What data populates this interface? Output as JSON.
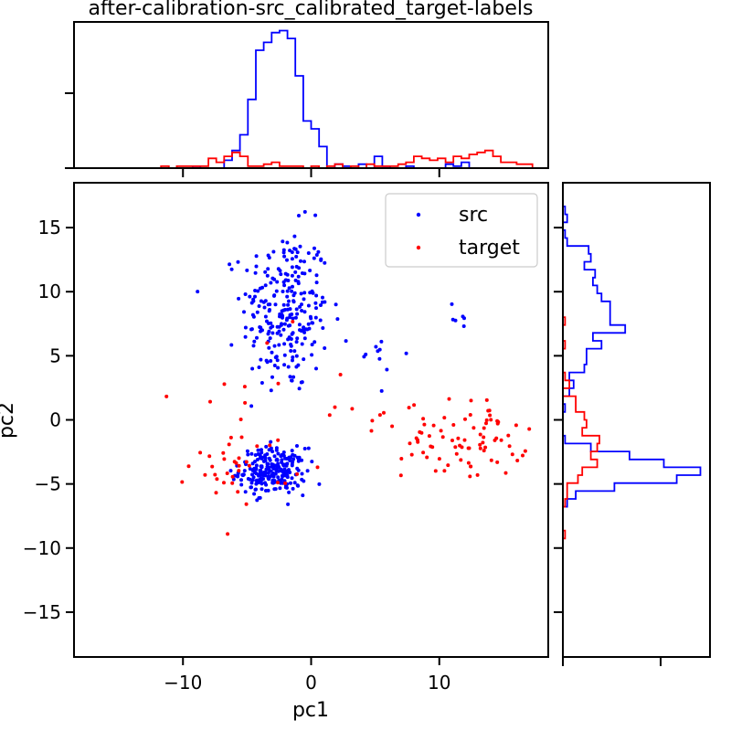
{
  "chart_data": {
    "type": "scatter",
    "title": "after-calibration-src_calibrated_target-labels",
    "xlabel": "pc1",
    "ylabel": "pc2",
    "xlim": [
      -18.5,
      18.5
    ],
    "ylim": [
      -18.5,
      18.5
    ],
    "xticks": [
      -10,
      0,
      10
    ],
    "yticks": [
      -15,
      -10,
      -5,
      0,
      5,
      10,
      15
    ],
    "xtick_labels": [
      "−10",
      "0",
      "10"
    ],
    "ytick_labels": [
      "−15",
      "−10",
      "−5",
      "0",
      "5",
      "10",
      "15"
    ],
    "legend_position": "top-right",
    "series": [
      {
        "name": "src",
        "color": "#0000ff",
        "clusters": [
          {
            "cx": -2.0,
            "cy": 8.5,
            "sx": 1.7,
            "sy": 3.2,
            "n": 260
          },
          {
            "cx": -3.0,
            "cy": -4.0,
            "sx": 1.3,
            "sy": 0.9,
            "n": 240
          },
          {
            "cx": 11.0,
            "cy": 8.0,
            "sx": 1.0,
            "sy": 0.8,
            "n": 6
          },
          {
            "cx": 5.5,
            "cy": 5.0,
            "sx": 1.0,
            "sy": 1.0,
            "n": 10
          }
        ]
      },
      {
        "name": "target",
        "color": "#ff0000",
        "clusters": [
          {
            "cx": 12.0,
            "cy": -1.5,
            "sx": 2.4,
            "sy": 1.5,
            "n": 80
          },
          {
            "cx": -5.5,
            "cy": -3.5,
            "sx": 2.0,
            "sy": 1.4,
            "n": 35
          },
          {
            "cx": -5.0,
            "cy": 4.0,
            "sx": 2.5,
            "sy": 2.5,
            "n": 10
          },
          {
            "cx": 5.0,
            "cy": 0.0,
            "sx": 1.5,
            "sy": 0.6,
            "n": 8
          }
        ]
      }
    ],
    "histograms": {
      "top": {
        "range": [
          -18.5,
          18.5
        ],
        "bins": 60
      },
      "right": {
        "range": [
          -18.5,
          18.5
        ],
        "bins": 60
      }
    }
  }
}
